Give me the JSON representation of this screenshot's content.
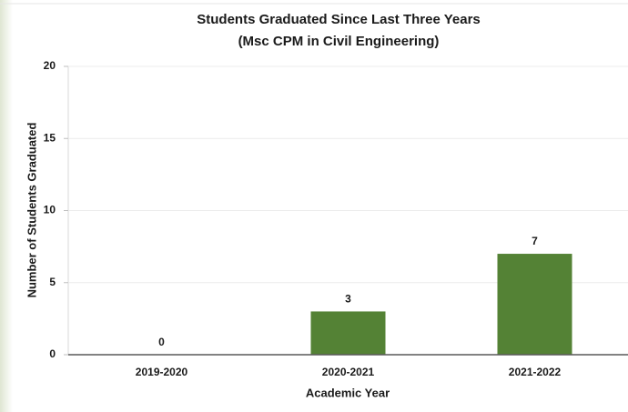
{
  "chart_data": {
    "type": "bar",
    "title": "Students Graduated Since Last Three Years",
    "subtitle": "(Msc CPM in Civil Engineering)",
    "x_label": "Academic Year",
    "y_label": "Number of Students Graduated",
    "categories": [
      "2019-2020",
      "2020-2021",
      "2021-2022"
    ],
    "values": [
      0,
      3,
      7
    ],
    "color": "#548235",
    "ylim": [
      0,
      20
    ],
    "yticks": [
      0,
      5,
      10,
      15,
      20
    ],
    "grid": true
  }
}
